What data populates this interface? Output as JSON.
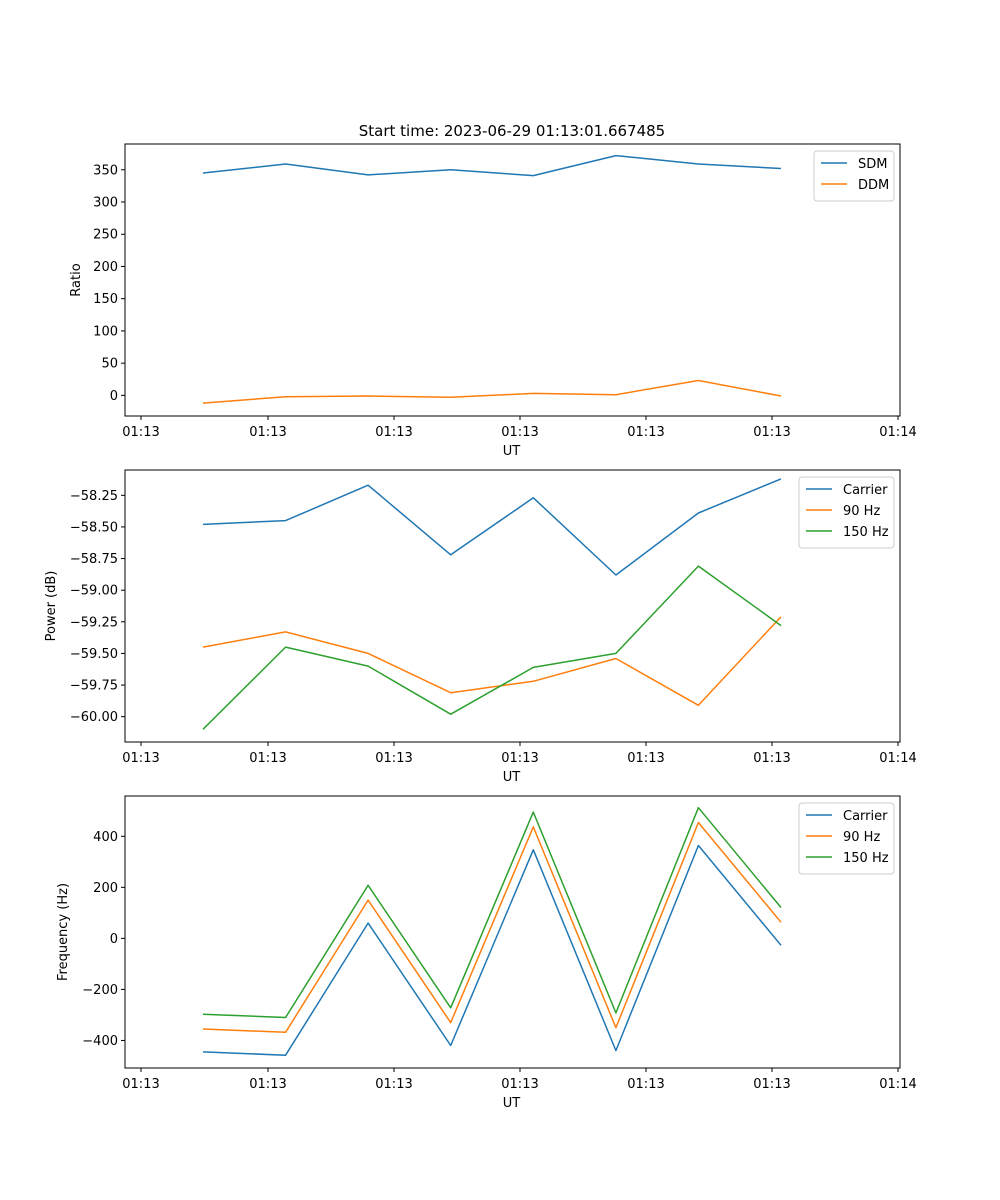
{
  "figure": {
    "title": "Start time: 2023-06-29 01:13:01.667485"
  },
  "chart_data": [
    {
      "type": "line",
      "xlabel": "UT",
      "ylabel": "Ratio",
      "x_tick_labels": [
        "01:13",
        "01:13",
        "01:13",
        "01:13",
        "01:13",
        "01:13",
        "01:14"
      ],
      "ylim": [
        -32,
        390
      ],
      "y_ticks": [
        0,
        50,
        100,
        150,
        200,
        250,
        300,
        350
      ],
      "y_tick_labels": [
        "0",
        "50",
        "100",
        "150",
        "200",
        "250",
        "300",
        "350"
      ],
      "legend_position": "top-right",
      "grid": false,
      "series": [
        {
          "name": "SDM",
          "color": "#1f77b4",
          "values": [
            345,
            359,
            342,
            350,
            341,
            372,
            359,
            352
          ]
        },
        {
          "name": "DDM",
          "color": "#ff7f0e",
          "values": [
            -12,
            -2,
            -1,
            -3,
            3,
            1,
            23,
            -1
          ]
        }
      ]
    },
    {
      "type": "line",
      "xlabel": "UT",
      "ylabel": "Power (dB)",
      "x_tick_labels": [
        "01:13",
        "01:13",
        "01:13",
        "01:13",
        "01:13",
        "01:13",
        "01:14"
      ],
      "ylim": [
        -60.2,
        -58.05
      ],
      "y_ticks": [
        -60.0,
        -59.75,
        -59.5,
        -59.25,
        -59.0,
        -58.75,
        -58.5,
        -58.25
      ],
      "y_tick_labels": [
        "−60.00",
        "−59.75",
        "−59.50",
        "−59.25",
        "−59.00",
        "−58.75",
        "−58.50",
        "−58.25"
      ],
      "legend_position": "top-right",
      "grid": false,
      "series": [
        {
          "name": "Carrier",
          "color": "#1f77b4",
          "values": [
            -58.48,
            -58.45,
            -58.17,
            -58.72,
            -58.27,
            -58.88,
            -58.39,
            -58.12
          ]
        },
        {
          "name": "90 Hz",
          "color": "#ff7f0e",
          "values": [
            -59.45,
            -59.33,
            -59.5,
            -59.81,
            -59.72,
            -59.54,
            -59.91,
            -59.21
          ]
        },
        {
          "name": "150 Hz",
          "color": "#2ca02c",
          "values": [
            -60.1,
            -59.45,
            -59.6,
            -59.98,
            -59.61,
            -59.5,
            -58.81,
            -59.28
          ]
        }
      ]
    },
    {
      "type": "line",
      "xlabel": "UT",
      "ylabel": "Frequency (Hz)",
      "x_tick_labels": [
        "01:13",
        "01:13",
        "01:13",
        "01:13",
        "01:13",
        "01:13",
        "01:14"
      ],
      "ylim": [
        -508,
        558
      ],
      "y_ticks": [
        -400,
        -200,
        0,
        200,
        400
      ],
      "y_tick_labels": [
        "−400",
        "−200",
        "0",
        "200",
        "400"
      ],
      "legend_position": "top-right",
      "grid": false,
      "series": [
        {
          "name": "Carrier",
          "color": "#1f77b4",
          "values": [
            -445,
            -458,
            60,
            -420,
            347,
            -440,
            364,
            -27
          ]
        },
        {
          "name": "90 Hz",
          "color": "#ff7f0e",
          "values": [
            -355,
            -368,
            150,
            -330,
            437,
            -350,
            454,
            63
          ]
        },
        {
          "name": "150 Hz",
          "color": "#2ca02c",
          "values": [
            -297,
            -310,
            208,
            -272,
            495,
            -292,
            512,
            121
          ]
        }
      ]
    }
  ]
}
